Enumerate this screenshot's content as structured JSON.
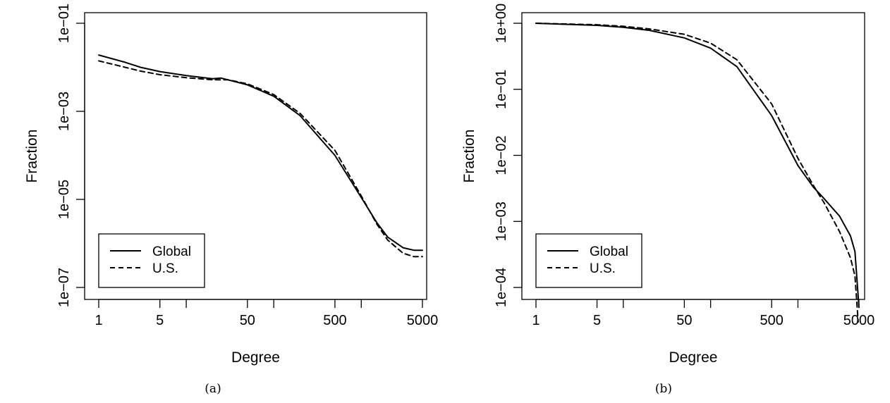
{
  "chart_data": [
    {
      "type": "line",
      "panel_caption": "(a)",
      "xlabel": "Degree",
      "ylabel": "Fraction",
      "x_scale": "log",
      "y_scale": "log",
      "xlim": [
        0.8,
        7000
      ],
      "ylim": [
        1e-07,
        0.1
      ],
      "x_ticks": [
        1,
        5,
        10,
        50,
        100,
        500,
        1000,
        5000
      ],
      "x_tick_labels": [
        "1",
        "5",
        "",
        "50",
        "",
        "500",
        "",
        "5000"
      ],
      "y_ticks": [
        1e-07,
        1e-05,
        0.001,
        0.1
      ],
      "y_tick_labels": [
        "1e−07",
        "1e−05",
        "1e−03",
        "1e−01"
      ],
      "legend_position": "bottom-left",
      "series": [
        {
          "name": "Global",
          "style": "solid",
          "x": [
            1,
            2,
            3,
            5,
            10,
            20,
            25,
            50,
            100,
            200,
            500,
            1000,
            1500,
            2000,
            3000,
            4000,
            5000
          ],
          "y": [
            0.019,
            0.013,
            0.01,
            0.008,
            0.0065,
            0.0055,
            0.0057,
            0.004,
            0.0022,
            0.0008,
            0.0001,
            1.1e-05,
            3e-06,
            1.4e-06,
            8e-07,
            7e-07,
            7e-07
          ]
        },
        {
          "name": "U.S.",
          "style": "dashed",
          "x": [
            1,
            2,
            3,
            5,
            10,
            20,
            30,
            50,
            100,
            200,
            500,
            1000,
            1500,
            2000,
            3000,
            4000,
            5000
          ],
          "y": [
            0.014,
            0.01,
            0.0082,
            0.0068,
            0.0058,
            0.0052,
            0.0052,
            0.0042,
            0.0024,
            0.0009,
            0.00013,
            1.2e-05,
            2.8e-06,
            1.2e-06,
            6e-07,
            5e-07,
            5e-07
          ]
        }
      ]
    },
    {
      "type": "line",
      "panel_caption": "(b)",
      "xlabel": "Degree",
      "ylabel": "Fraction",
      "x_scale": "log",
      "y_scale": "log",
      "xlim": [
        0.8,
        7000
      ],
      "ylim": [
        0.0001,
        1
      ],
      "x_ticks": [
        1,
        5,
        10,
        50,
        100,
        500,
        1000,
        5000
      ],
      "x_tick_labels": [
        "1",
        "5",
        "",
        "50",
        "",
        "500",
        "",
        "5000"
      ],
      "y_ticks": [
        0.0001,
        0.001,
        0.01,
        0.1,
        1
      ],
      "y_tick_labels": [
        "1e−04",
        "1e−03",
        "1e−02",
        "1e−01",
        "1e+00"
      ],
      "legend_position": "bottom-left",
      "series": [
        {
          "name": "Global",
          "style": "solid",
          "x": [
            1,
            5,
            10,
            20,
            50,
            100,
            200,
            500,
            1000,
            1500,
            2000,
            3000,
            4000,
            4500,
            5000
          ],
          "y": [
            1,
            0.93,
            0.87,
            0.78,
            0.6,
            0.42,
            0.22,
            0.04,
            0.007,
            0.0033,
            0.0022,
            0.0012,
            0.0006,
            0.00035,
            5e-05
          ]
        },
        {
          "name": "U.S.",
          "style": "dashed",
          "x": [
            1,
            5,
            10,
            20,
            50,
            100,
            200,
            500,
            1000,
            1500,
            2000,
            3000,
            4000,
            4500,
            4900
          ],
          "y": [
            1,
            0.95,
            0.9,
            0.82,
            0.68,
            0.5,
            0.28,
            0.06,
            0.009,
            0.0035,
            0.0019,
            0.0007,
            0.00028,
            0.00015,
            3e-05
          ]
        }
      ]
    }
  ]
}
